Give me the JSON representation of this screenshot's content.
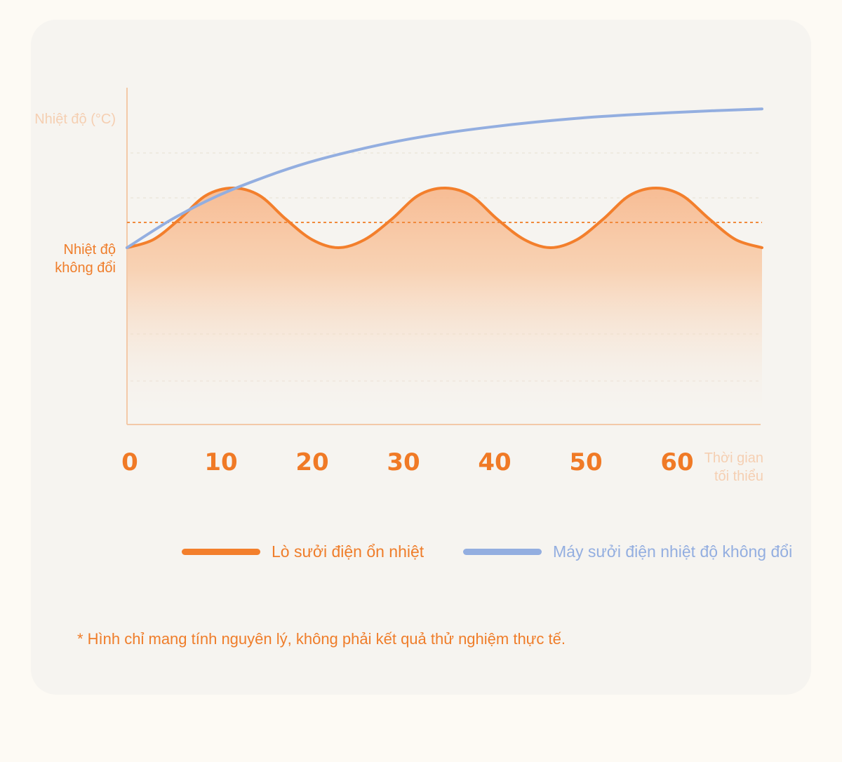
{
  "chart_data": {
    "type": "line",
    "ylabel": "Nhiệt độ (°C)",
    "constant_label": "Nhiệt độ không đổi",
    "xlabel": "Thời gian tối thiểu",
    "x_ticks": [
      "0",
      "10",
      "20",
      "30",
      "40",
      "50",
      "60"
    ],
    "xlim": [
      0,
      70
    ],
    "ylim": [
      0,
      100
    ],
    "constant_level": 60,
    "grid": "dotted horizontal lines",
    "legend_position": "bottom",
    "series": [
      {
        "name": "Lò sưởi điện ổn nhiệt",
        "color": "#f37f2c",
        "fill": true,
        "x": [
          0,
          2.9,
          5.8,
          8.7,
          11.7,
          14.6,
          17.5,
          20.4,
          23.3,
          26.2,
          29.2,
          32.1,
          35,
          37.9,
          40.8,
          43.8,
          46.7,
          49.6,
          52.5,
          55.4,
          58.3,
          61.2,
          64.2,
          67.1,
          70
        ],
        "y": [
          52.5,
          54.9,
          61,
          68,
          70.2,
          68,
          61,
          54.9,
          52.5,
          54.9,
          61,
          68,
          70.2,
          68,
          61,
          54.9,
          52.5,
          54.9,
          61,
          68,
          70.2,
          68,
          61,
          54.9,
          52.5
        ]
      },
      {
        "name": "Máy sưởi điện nhiệt độ không đổi",
        "color": "#93aee0",
        "fill": false,
        "x": [
          0,
          5,
          10,
          15,
          20,
          25,
          30,
          35,
          40,
          45,
          50,
          55,
          60,
          65,
          70
        ],
        "y": [
          52.5,
          61,
          67.9,
          73.3,
          77.8,
          81.3,
          84.2,
          86.5,
          88.3,
          89.8,
          91,
          91.9,
          92.6,
          93.2,
          93.7
        ]
      }
    ]
  },
  "note": "* Hình chỉ mang tính nguyên lý, không phải kết quả thử nghiệm thực tế."
}
